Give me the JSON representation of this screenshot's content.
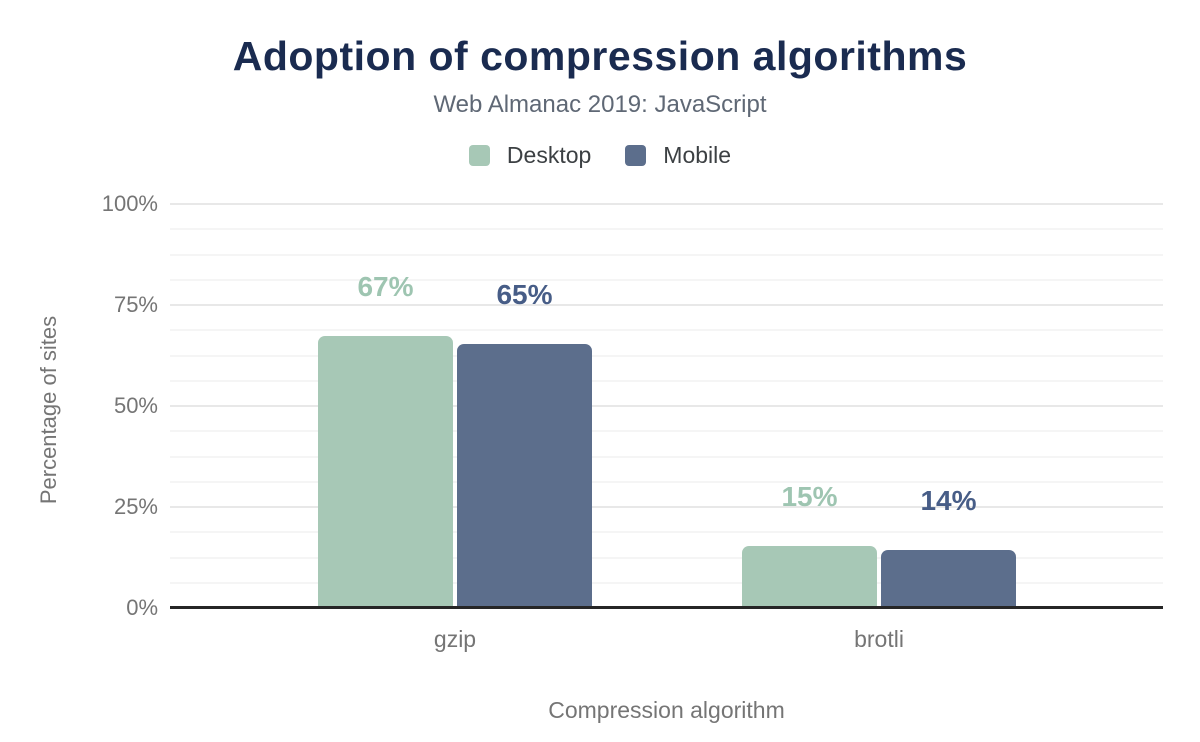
{
  "chart_data": {
    "type": "bar",
    "title": "Adoption of compression algorithms",
    "subtitle": "Web Almanac 2019: JavaScript",
    "categories": [
      "gzip",
      "brotli"
    ],
    "series": [
      {
        "name": "Desktop",
        "values": [
          67,
          15
        ],
        "color": "#a7c8b6",
        "label_color": "#9ec5b1"
      },
      {
        "name": "Mobile",
        "values": [
          65,
          14
        ],
        "color": "#5c6e8c",
        "label_color": "#475d87"
      }
    ],
    "value_suffix": "%",
    "xlabel": "Compression algorithm",
    "ylabel": "Percentage of sites",
    "ylim": [
      0,
      100
    ],
    "yticks": [
      {
        "value": 0,
        "label": "0%"
      },
      {
        "value": 25,
        "label": "25%"
      },
      {
        "value": 50,
        "label": "50%"
      },
      {
        "value": 75,
        "label": "75%"
      },
      {
        "value": 100,
        "label": "100%"
      }
    ],
    "minor_grid_step": 6.25,
    "grid": true,
    "legend_position": "top"
  }
}
